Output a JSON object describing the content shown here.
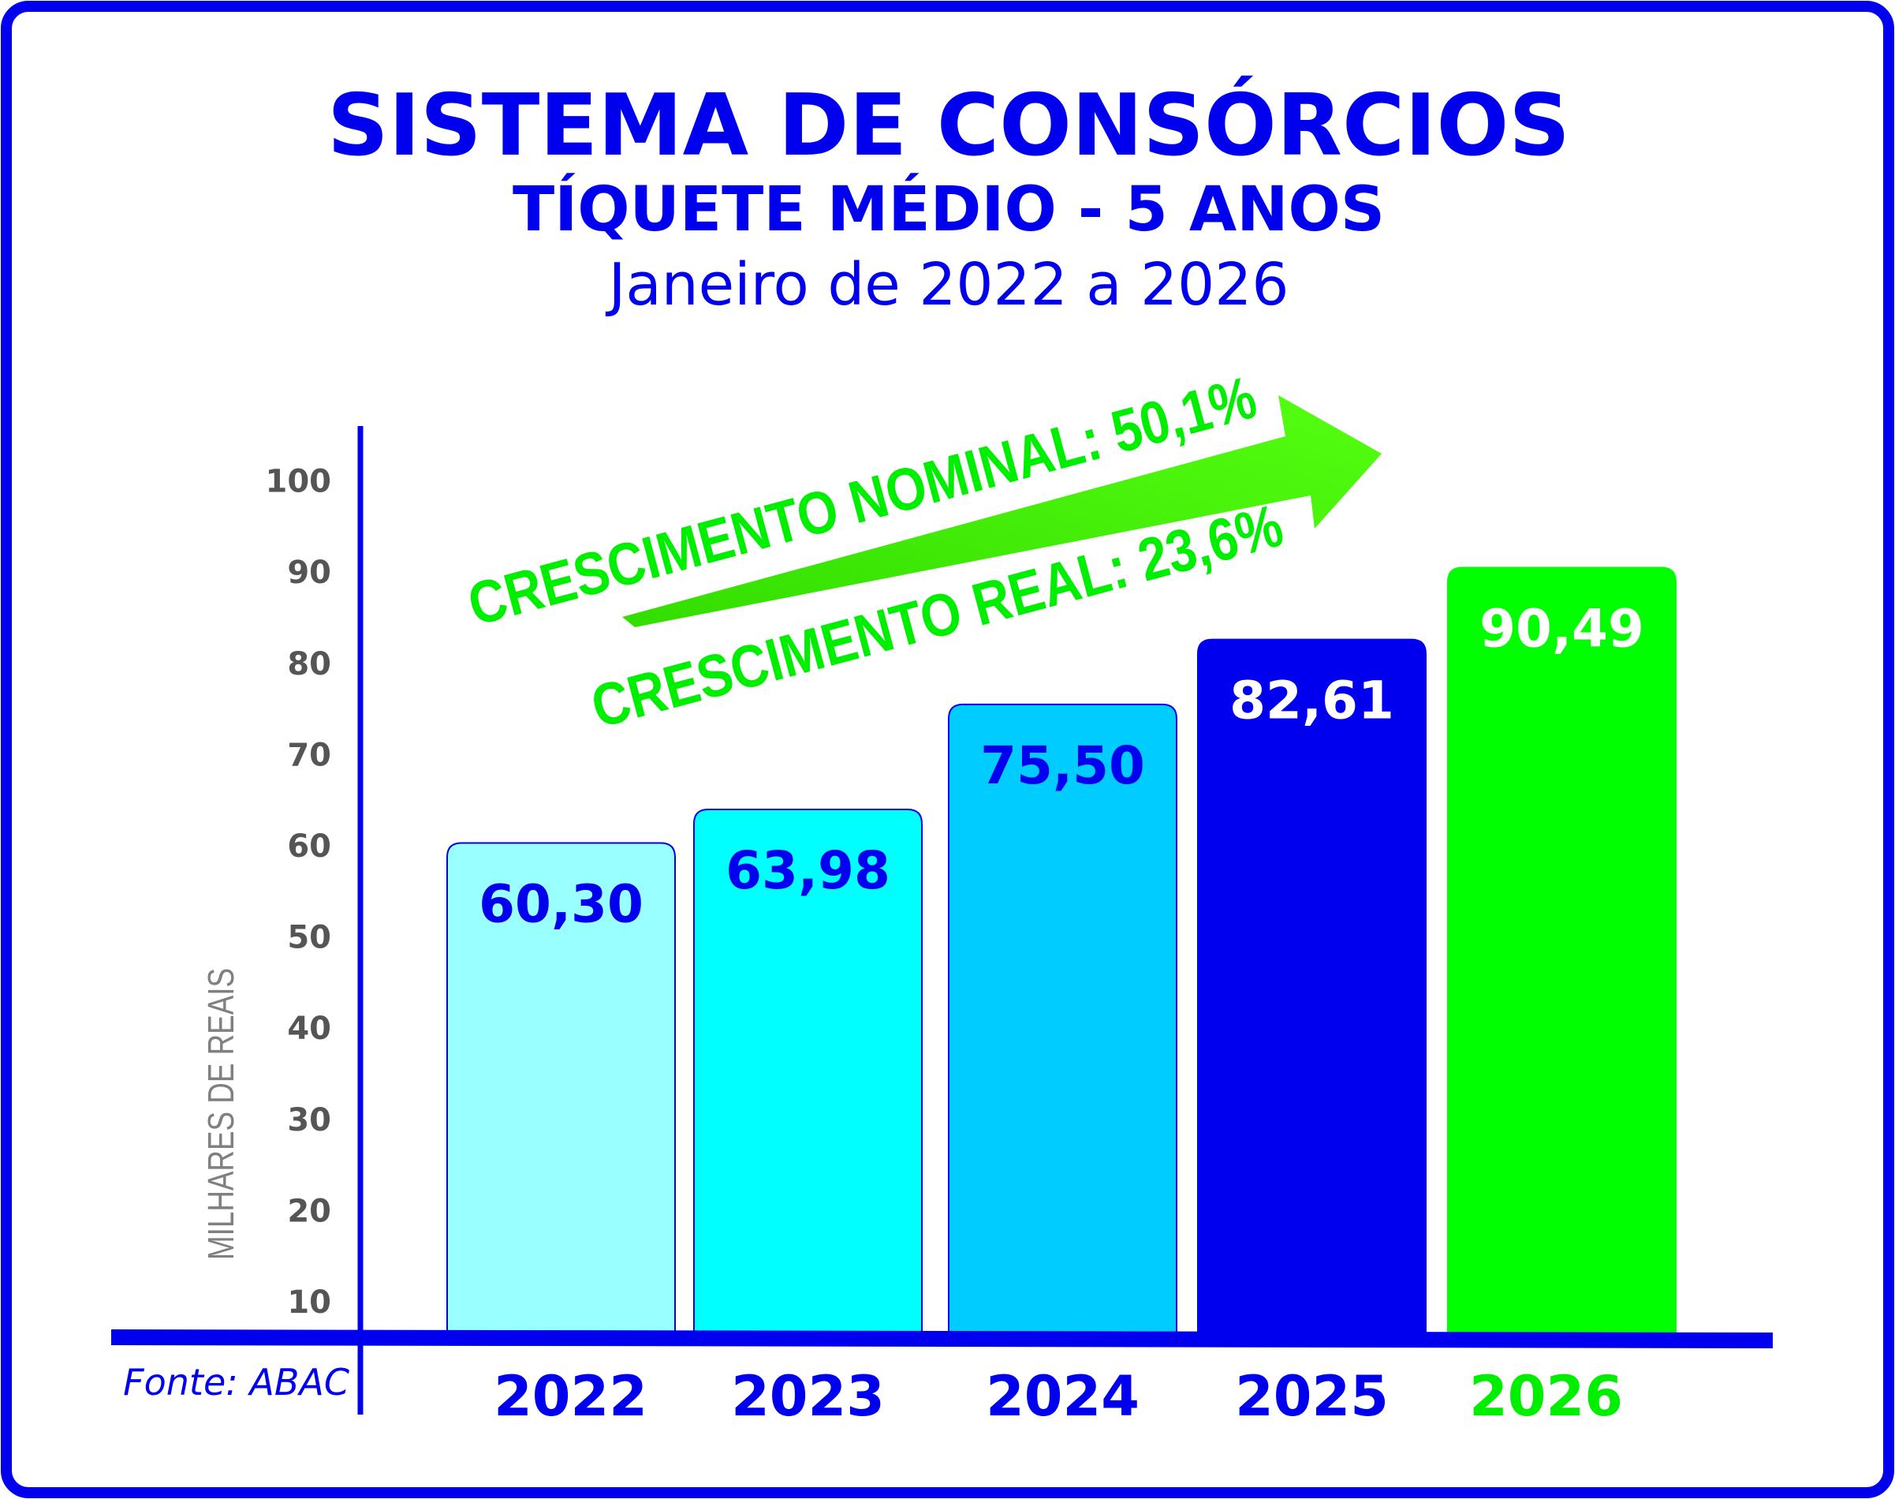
{
  "chart_data": {
    "type": "bar",
    "title": "SISTEMA DE CONSÓRCIOS",
    "subtitle": "TÍQUETE MÉDIO - 5 ANOS",
    "period": "Janeiro de 2022 a 2026",
    "ylabel": "MILHARES DE REAIS",
    "yticks": [
      "100",
      "90",
      "80",
      "70",
      "60",
      "50",
      "40",
      "30",
      "20",
      "10"
    ],
    "ylim": [
      10,
      100
    ],
    "grid": false,
    "categories": [
      "2022",
      "2023",
      "2024",
      "2025",
      "2026"
    ],
    "values": [
      60.3,
      63.98,
      75.5,
      82.61,
      90.49
    ],
    "value_labels": [
      "60,30",
      "63,98",
      "75,50",
      "82,61",
      "90,49"
    ],
    "bar_colors": [
      "#99ffff",
      "#00ffff",
      "#00ccff",
      "#0000ee",
      "#00ff00"
    ],
    "label_colors": [
      "#0000ee",
      "#0000ee",
      "#0000ee",
      "#ffffff",
      "#ffffff"
    ],
    "year_colors": [
      "#0000ee",
      "#0000ee",
      "#0000ee",
      "#0000ee",
      "#00ee00"
    ],
    "annotations": {
      "nominal": "CRESCIMENTO NOMINAL: 50,1%",
      "real": "CRESCIMENTO REAL: 23,6%",
      "arrow": "up-right-arrow"
    },
    "source": "Fonte: ABAC"
  },
  "colors": {
    "accent": "#0000ee",
    "growth": "#00ee00",
    "ticks": "#555555",
    "ylabel": "#808080"
  }
}
